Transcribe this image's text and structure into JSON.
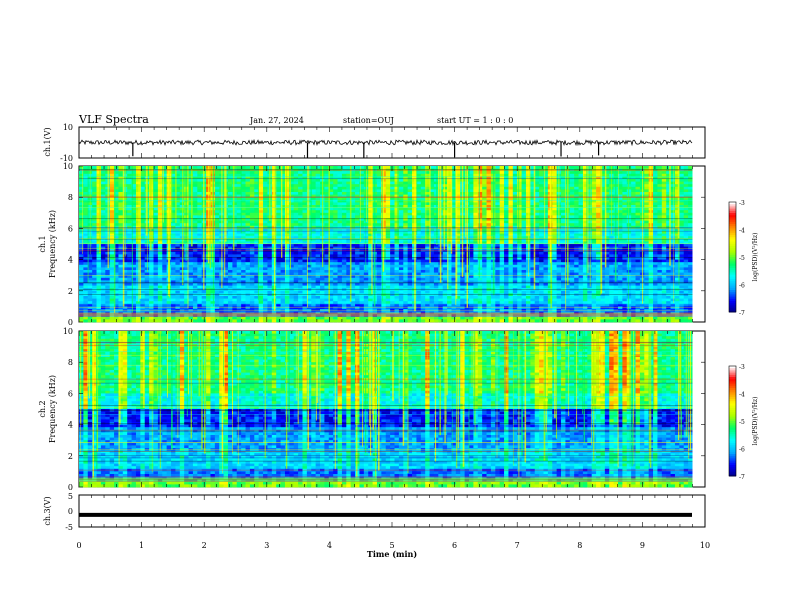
{
  "header": {
    "title": "VLF Spectra",
    "date": "Jan. 27, 2024",
    "station": "station=OUJ",
    "start": "start UT =  1 : 0  : 0"
  },
  "chart_data": [
    {
      "type": "line",
      "panel": "ch1-waveform",
      "ylabel": "ch.1(V)",
      "ylim": [
        -10,
        10
      ],
      "yticks": [
        "10",
        "-10"
      ],
      "xlim": [
        0,
        10
      ],
      "series": [
        {
          "baseline": 0,
          "noise_amplitude": 1.5,
          "color": "#000000"
        }
      ]
    },
    {
      "type": "heatmap",
      "panel": "ch1-spectrogram",
      "ylabel": "ch.1\nFrequency (kHz)",
      "ylabel_line1": "ch.1",
      "ylabel_line2": "Frequency (kHz)",
      "ylim": [
        0,
        10
      ],
      "yticks": [
        "0",
        "2",
        "4",
        "6",
        "8",
        "10"
      ],
      "xlim": [
        0,
        9.8
      ],
      "colorbar": {
        "label": "log(PSD)(V²/Hz)",
        "range": [
          -7,
          -3
        ],
        "ticks": [
          "-3",
          "-4",
          "-5",
          "-6",
          "-7"
        ]
      }
    },
    {
      "type": "heatmap",
      "panel": "ch2-spectrogram",
      "ylabel_line1": "ch.2",
      "ylabel_line2": "Frequency (kHz)",
      "ylim": [
        0,
        10
      ],
      "yticks": [
        "0",
        "2",
        "4",
        "6",
        "8",
        "10"
      ],
      "xlim": [
        0,
        9.8
      ],
      "colorbar": {
        "label": "log(PSD)(V²/Hz)",
        "range": [
          -7,
          -3
        ],
        "ticks": [
          "-3",
          "-4",
          "-5",
          "-6",
          "-7"
        ]
      }
    },
    {
      "type": "line",
      "panel": "ch3-waveform",
      "ylabel": "ch.3(V)",
      "ylim": [
        -5,
        5
      ],
      "yticks": [
        "5",
        "0",
        "-5"
      ],
      "xlim": [
        0,
        10
      ],
      "series": [
        {
          "baseline": -1.2,
          "thickness": "heavy",
          "color": "#000000"
        }
      ]
    }
  ],
  "xaxis": {
    "label": "Time (min)",
    "ticks": [
      "0",
      "1",
      "2",
      "3",
      "4",
      "5",
      "6",
      "7",
      "8",
      "9",
      "10"
    ],
    "range": [
      0,
      10
    ]
  },
  "colors": {
    "colormap": [
      "#000080",
      "#0000ff",
      "#00aaff",
      "#00ffff",
      "#00ff66",
      "#aaff00",
      "#ffff00",
      "#ff8800",
      "#ff0000",
      "#ffffff"
    ]
  }
}
